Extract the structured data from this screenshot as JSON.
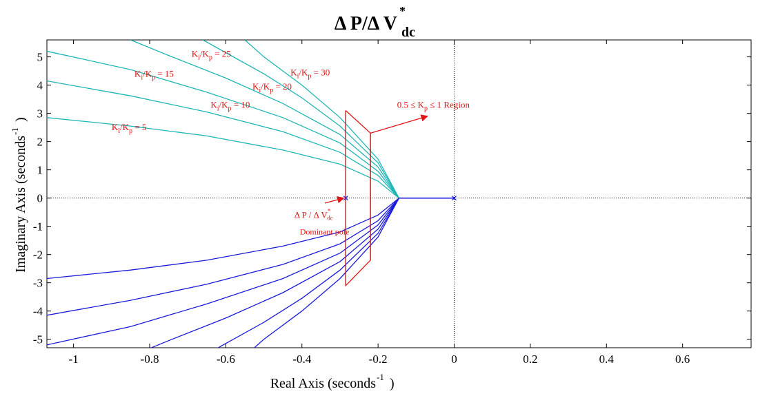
{
  "chart_data": {
    "type": "line",
    "title_main": "Δ P/Δ V",
    "title_sup": "*",
    "title_sub": "dc",
    "xlabel_main": "Real Axis (seconds",
    "xlabel_sup": "-1",
    "xlabel_end": ")",
    "ylabel_main": "Imaginary Axis (seconds",
    "ylabel_sup": "-1",
    "ylabel_end": ")",
    "xlim": [
      -1.07,
      0.78
    ],
    "ylim": [
      -5.3,
      5.6
    ],
    "xticks": [
      -1,
      -0.8,
      -0.6,
      -0.4,
      -0.2,
      0,
      0.2,
      0.4,
      0.6
    ],
    "yticks": [
      -5,
      -4,
      -3,
      -2,
      -1,
      0,
      1,
      2,
      3,
      4,
      5
    ],
    "grid": false,
    "colors": {
      "upper_branch": "#1fb5b5",
      "lower_branch": "#1a1adb",
      "annotation": "#e01414",
      "axis": "#000000",
      "reference_line": "#000000"
    },
    "series": [
      {
        "ratio": 5,
        "upper": [
          [
            -0.145,
            0
          ],
          [
            -0.2,
            0.6
          ],
          [
            -0.3,
            1.2
          ],
          [
            -0.45,
            1.7
          ],
          [
            -0.65,
            2.2
          ],
          [
            -0.85,
            2.55
          ],
          [
            -1.07,
            2.85
          ]
        ]
      },
      {
        "ratio": 10,
        "upper": [
          [
            -0.145,
            0
          ],
          [
            -0.2,
            0.8
          ],
          [
            -0.3,
            1.62
          ],
          [
            -0.45,
            2.35
          ],
          [
            -0.65,
            3.05
          ],
          [
            -0.85,
            3.62
          ],
          [
            -1.07,
            4.15
          ]
        ]
      },
      {
        "ratio": 15,
        "upper": [
          [
            -0.145,
            0
          ],
          [
            -0.2,
            0.95
          ],
          [
            -0.3,
            1.95
          ],
          [
            -0.45,
            2.85
          ],
          [
            -0.65,
            3.75
          ],
          [
            -0.85,
            4.55
          ],
          [
            -1.07,
            5.2
          ]
        ]
      },
      {
        "ratio": 20,
        "upper": [
          [
            -0.145,
            0
          ],
          [
            -0.2,
            1.1
          ],
          [
            -0.3,
            2.25
          ],
          [
            -0.45,
            3.35
          ],
          [
            -0.6,
            4.25
          ],
          [
            -0.75,
            5.05
          ],
          [
            -0.85,
            5.6
          ]
        ]
      },
      {
        "ratio": 25,
        "upper": [
          [
            -0.145,
            0
          ],
          [
            -0.2,
            1.25
          ],
          [
            -0.3,
            2.55
          ],
          [
            -0.4,
            3.55
          ],
          [
            -0.5,
            4.4
          ],
          [
            -0.6,
            5.15
          ],
          [
            -0.66,
            5.6
          ]
        ]
      },
      {
        "ratio": 30,
        "upper": [
          [
            -0.145,
            0
          ],
          [
            -0.2,
            1.38
          ],
          [
            -0.3,
            2.85
          ],
          [
            -0.4,
            4.0
          ],
          [
            -0.5,
            5.0
          ],
          [
            -0.55,
            5.6
          ]
        ]
      }
    ],
    "real_axis_segment": [
      [
        -0.145,
        0
      ],
      [
        0,
        0
      ]
    ],
    "pole_markers": [
      [
        -0.285,
        0
      ],
      [
        0,
        0
      ]
    ],
    "region_polygon": {
      "kp_min_edge": [
        [
          -0.285,
          3.1
        ],
        [
          -0.285,
          -3.1
        ]
      ],
      "kp_max_edge": [
        [
          -0.22,
          2.3
        ],
        [
          -0.22,
          -2.2
        ]
      ]
    },
    "labels": [
      {
        "text": "K",
        "sub": "i",
        "mid": "/K",
        "sub2": "p",
        "end": " = 5",
        "x": -0.9,
        "y": 2.4
      },
      {
        "text": "K",
        "sub": "i",
        "mid": "/K",
        "sub2": "p",
        "end": " = 10",
        "x": -0.64,
        "y": 3.2
      },
      {
        "text": "K",
        "sub": "i",
        "mid": "/K",
        "sub2": "p",
        "end": " = 15",
        "x": -0.84,
        "y": 4.3
      },
      {
        "text": "K",
        "sub": "i",
        "mid": "/K",
        "sub2": "p",
        "end": " = 20",
        "x": -0.53,
        "y": 3.85
      },
      {
        "text": "K",
        "sub": "i",
        "mid": "/K",
        "sub2": "p",
        "end": " = 25",
        "x": -0.69,
        "y": 5.0
      },
      {
        "text": "K",
        "sub": "i",
        "mid": "/K",
        "sub2": "p",
        "end": " = 30",
        "x": -0.43,
        "y": 4.35
      }
    ],
    "region_label": {
      "pre": "0.5 ≤ K",
      "sub": "p",
      "post": " ≤ 1 Region",
      "x": -0.15,
      "y": 3.2
    },
    "pole_label": {
      "line1": "Δ P / Δ V",
      "sup": "*",
      "sub": "dc",
      "line2": "Dominant pole",
      "x": -0.42,
      "y": -0.7
    },
    "arrows": [
      {
        "from": [
          -0.22,
          2.3
        ],
        "to": [
          -0.07,
          2.9
        ]
      },
      {
        "from": [
          -0.34,
          -0.18
        ],
        "to": [
          -0.29,
          0.0
        ]
      }
    ]
  }
}
